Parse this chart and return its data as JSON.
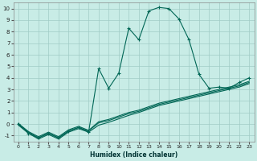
{
  "title": "",
  "xlabel": "Humidex (Indice chaleur)",
  "background_color": "#c8ece6",
  "grid_color": "#a0ccc6",
  "line_color": "#006655",
  "xlim": [
    -0.5,
    23.5
  ],
  "ylim": [
    -1.5,
    10.5
  ],
  "xticks": [
    0,
    1,
    2,
    3,
    4,
    5,
    6,
    7,
    8,
    9,
    10,
    11,
    12,
    13,
    14,
    15,
    16,
    17,
    18,
    19,
    20,
    21,
    22,
    23
  ],
  "yticks": [
    -1,
    0,
    1,
    2,
    3,
    4,
    5,
    6,
    7,
    8,
    9,
    10
  ],
  "series1_x": [
    0,
    1,
    2,
    3,
    4,
    5,
    6,
    7,
    8,
    9,
    10,
    11,
    12,
    13,
    14,
    15,
    16,
    17,
    18,
    19,
    20,
    21,
    22,
    23
  ],
  "series1_y": [
    0.0,
    -0.8,
    -1.2,
    -0.8,
    -1.2,
    -0.6,
    -0.3,
    -0.7,
    4.8,
    3.1,
    4.4,
    8.3,
    7.3,
    9.8,
    10.1,
    10.0,
    9.1,
    7.3,
    4.3,
    3.1,
    3.2,
    3.1,
    3.6,
    4.0
  ],
  "series2_x": [
    0,
    1,
    2,
    3,
    4,
    5,
    6,
    7,
    8,
    9,
    10,
    11,
    12,
    13,
    14,
    15,
    16,
    17,
    18,
    19,
    20,
    21,
    22,
    23
  ],
  "series2_y": [
    0.0,
    -0.7,
    -1.2,
    -0.8,
    -1.2,
    -0.6,
    -0.3,
    -0.6,
    0.1,
    0.3,
    0.6,
    0.9,
    1.1,
    1.4,
    1.7,
    1.9,
    2.1,
    2.3,
    2.5,
    2.7,
    2.9,
    3.1,
    3.3,
    3.6
  ],
  "series3_x": [
    0,
    1,
    2,
    3,
    4,
    5,
    6,
    7,
    8,
    9,
    10,
    11,
    12,
    13,
    14,
    15,
    16,
    17,
    18,
    19,
    20,
    21,
    22,
    23
  ],
  "series3_y": [
    -0.1,
    -0.8,
    -1.3,
    -0.9,
    -1.3,
    -0.7,
    -0.4,
    -0.7,
    -0.1,
    0.15,
    0.45,
    0.75,
    1.0,
    1.3,
    1.6,
    1.8,
    2.0,
    2.2,
    2.4,
    2.6,
    2.8,
    3.0,
    3.2,
    3.5
  ],
  "series4_x": [
    0,
    1,
    2,
    3,
    4,
    5,
    6,
    7,
    8,
    9,
    10,
    11,
    12,
    13,
    14,
    15,
    16,
    17,
    18,
    19,
    20,
    21,
    22,
    23
  ],
  "series4_y": [
    0.05,
    -0.65,
    -1.1,
    -0.7,
    -1.1,
    -0.5,
    -0.2,
    -0.55,
    0.2,
    0.4,
    0.7,
    1.0,
    1.2,
    1.5,
    1.8,
    2.0,
    2.2,
    2.4,
    2.6,
    2.8,
    3.0,
    3.2,
    3.4,
    3.7
  ]
}
